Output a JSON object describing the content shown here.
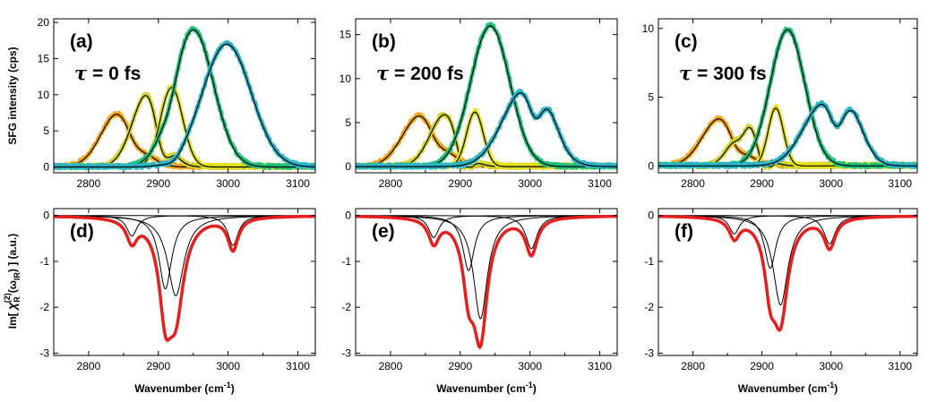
{
  "figure": {
    "ylabel_top": "SFG intensity (cps)",
    "ylabel_bottom_prefix": "Im[ ",
    "ylabel_bottom_chi": "χ",
    "ylabel_bottom_sub": "R",
    "ylabel_bottom_sup": "(2)",
    "ylabel_bottom_arg": "(ω",
    "ylabel_bottom_arg_sub": "IR",
    "ylabel_bottom_suffix": ") ] (a.u.)",
    "xlabel_text": "Wavenumber (cm",
    "xlabel_sup": "-1",
    "xlabel_close": ")"
  },
  "colors": {
    "c1": "#F2A81D",
    "c2": "#D4D42A",
    "c3": "#E4E21A",
    "c4": "#1FC27A",
    "c5": "#2BB5C8",
    "fit": "#000000",
    "total": "#E61E1E"
  },
  "chart_data": [
    {
      "type": "line",
      "panel": "(a)",
      "annotation_tau": "τ",
      "annotation_value": " = 0 fs",
      "xlim": [
        2750,
        3125
      ],
      "ylim": [
        -0.8,
        20.5
      ],
      "x_ticks": [
        "2800",
        "2900",
        "3000",
        "3100"
      ],
      "y_ticks": [
        "0",
        "5",
        "10",
        "15",
        "20"
      ],
      "peaks": [
        {
          "center": 2845,
          "amp": 7.8,
          "width": 26,
          "color": "c1"
        },
        {
          "center": 2885,
          "amp": 10.3,
          "width": 22,
          "color": "c2"
        },
        {
          "center": 2919,
          "amp": 11.0,
          "width": 16,
          "color": "c3"
        },
        {
          "center": 2950,
          "amp": 19.0,
          "width": 29,
          "color": "c4"
        },
        {
          "center": 2998,
          "amp": 17.0,
          "width": 35,
          "color": "c5"
        }
      ],
      "dips": [
        {
          "center": 2845,
          "amp": 7.8,
          "dip_center": 2865,
          "dip": 2.3,
          "dip_width": 13
        },
        {
          "center": 2885,
          "amp": 10.3,
          "dip_center": 2905,
          "dip": 4.5,
          "dip_width": 10
        },
        {
          "center": 2950,
          "amp": 19.0,
          "dip_center": 2918,
          "dip": 1.2,
          "dip_width": 10
        },
        {
          "center": 2998,
          "amp": 17.0,
          "dip_center": 2921,
          "dip": 1.0,
          "dip_width": 12
        }
      ]
    },
    {
      "type": "line",
      "panel": "(b)",
      "annotation_tau": "τ",
      "annotation_value": " = 200 fs",
      "xlim": [
        2750,
        3125
      ],
      "ylim": [
        -0.7,
        16.8
      ],
      "x_ticks": [
        "2800",
        "2900",
        "3000",
        "3100"
      ],
      "y_ticks": [
        "0",
        "5",
        "10",
        "15"
      ],
      "peaks": [
        {
          "center": 2845,
          "amp": 6.0,
          "width": 27,
          "color": "c1"
        },
        {
          "center": 2879,
          "amp": 6.0,
          "width": 22,
          "color": "c2"
        },
        {
          "center": 2921,
          "amp": 6.2,
          "width": 12,
          "color": "c3"
        },
        {
          "center": 2943,
          "amp": 16.0,
          "width": 28,
          "color": "c4"
        },
        {
          "center": 2993,
          "amp": 8.8,
          "width": 32,
          "color": "c5"
        }
      ],
      "dips": [
        {
          "center": 2845,
          "amp": 6.0,
          "dip_center": 2866,
          "dip": 1.6,
          "dip_width": 12
        },
        {
          "center": 2879,
          "amp": 6.0,
          "dip_center": 2905,
          "dip": 3.4,
          "dip_width": 10
        },
        {
          "center": 2993,
          "amp": 8.8,
          "dip_center": 3008,
          "dip": 3.5,
          "dip_width": 10
        },
        {
          "center": 2993,
          "amp": 8.8,
          "dip_center": 3025,
          "dip": -2.0,
          "dip_width": 16
        }
      ]
    },
    {
      "type": "line",
      "panel": "(c)",
      "annotation_tau": "τ",
      "annotation_value": " = 300 fs",
      "xlim": [
        2750,
        3125
      ],
      "ylim": [
        -0.5,
        10.7
      ],
      "x_ticks": [
        "2800",
        "2900",
        "3000",
        "3100"
      ],
      "y_ticks": [
        "0",
        "5",
        "10"
      ],
      "peaks": [
        {
          "center": 2840,
          "amp": 3.5,
          "width": 26,
          "color": "c1"
        },
        {
          "center": 2878,
          "amp": 3.6,
          "width": 20,
          "color": "c2"
        },
        {
          "center": 2920,
          "amp": 4.2,
          "width": 11,
          "color": "c3"
        },
        {
          "center": 2937,
          "amp": 9.9,
          "width": 25,
          "color": "c4"
        },
        {
          "center": 2990,
          "amp": 4.5,
          "width": 30,
          "color": "c5"
        }
      ],
      "dips": [
        {
          "center": 2840,
          "amp": 3.5,
          "dip_center": 2863,
          "dip": 1.0,
          "dip_width": 11
        },
        {
          "center": 2878,
          "amp": 3.6,
          "dip_center": 2870,
          "dip": 1.2,
          "dip_width": 9
        },
        {
          "center": 2878,
          "amp": 3.6,
          "dip_center": 2902,
          "dip": 1.8,
          "dip_width": 10
        },
        {
          "center": 2990,
          "amp": 4.5,
          "dip_center": 3008,
          "dip": 2.0,
          "dip_width": 10
        },
        {
          "center": 2990,
          "amp": 4.5,
          "dip_center": 3035,
          "dip": -2.4,
          "dip_width": 22
        }
      ]
    },
    {
      "type": "line",
      "panel": "(d)",
      "xlim": [
        2750,
        3125
      ],
      "ylim": [
        -3.05,
        0.15
      ],
      "x_ticks": [
        "2800",
        "2900",
        "3000",
        "3100"
      ],
      "y_ticks": [
        "0",
        "-1",
        "-2",
        "-3"
      ],
      "components": [
        {
          "center": 2862,
          "amp": 0.45,
          "width": 9
        },
        {
          "center": 2910,
          "amp": 1.6,
          "width": 11
        },
        {
          "center": 2925,
          "amp": 1.75,
          "width": 14
        },
        {
          "center": 3007,
          "amp": 0.65,
          "width": 9
        }
      ],
      "total_min": -2.72
    },
    {
      "type": "line",
      "panel": "(e)",
      "xlim": [
        2750,
        3125
      ],
      "ylim": [
        -3.05,
        0.15
      ],
      "x_ticks": [
        "2800",
        "2900",
        "3000",
        "3100"
      ],
      "y_ticks": [
        "0",
        "-1",
        "-2",
        "-3"
      ],
      "components": [
        {
          "center": 2862,
          "amp": 0.48,
          "width": 9
        },
        {
          "center": 2912,
          "amp": 1.2,
          "width": 10
        },
        {
          "center": 2929,
          "amp": 2.25,
          "width": 12
        },
        {
          "center": 3002,
          "amp": 0.72,
          "width": 10
        }
      ],
      "total_min": -2.87
    },
    {
      "type": "line",
      "panel": "(f)",
      "xlim": [
        2750,
        3125
      ],
      "ylim": [
        -3.05,
        0.15
      ],
      "x_ticks": [
        "2800",
        "2900",
        "3000",
        "3100"
      ],
      "y_ticks": [
        "0",
        "-1",
        "-2",
        "-3"
      ],
      "components": [
        {
          "center": 2860,
          "amp": 0.4,
          "width": 9
        },
        {
          "center": 2912,
          "amp": 1.15,
          "width": 10
        },
        {
          "center": 2927,
          "amp": 1.95,
          "width": 13
        },
        {
          "center": 2998,
          "amp": 0.62,
          "width": 10
        }
      ],
      "total_min": -2.5
    }
  ]
}
